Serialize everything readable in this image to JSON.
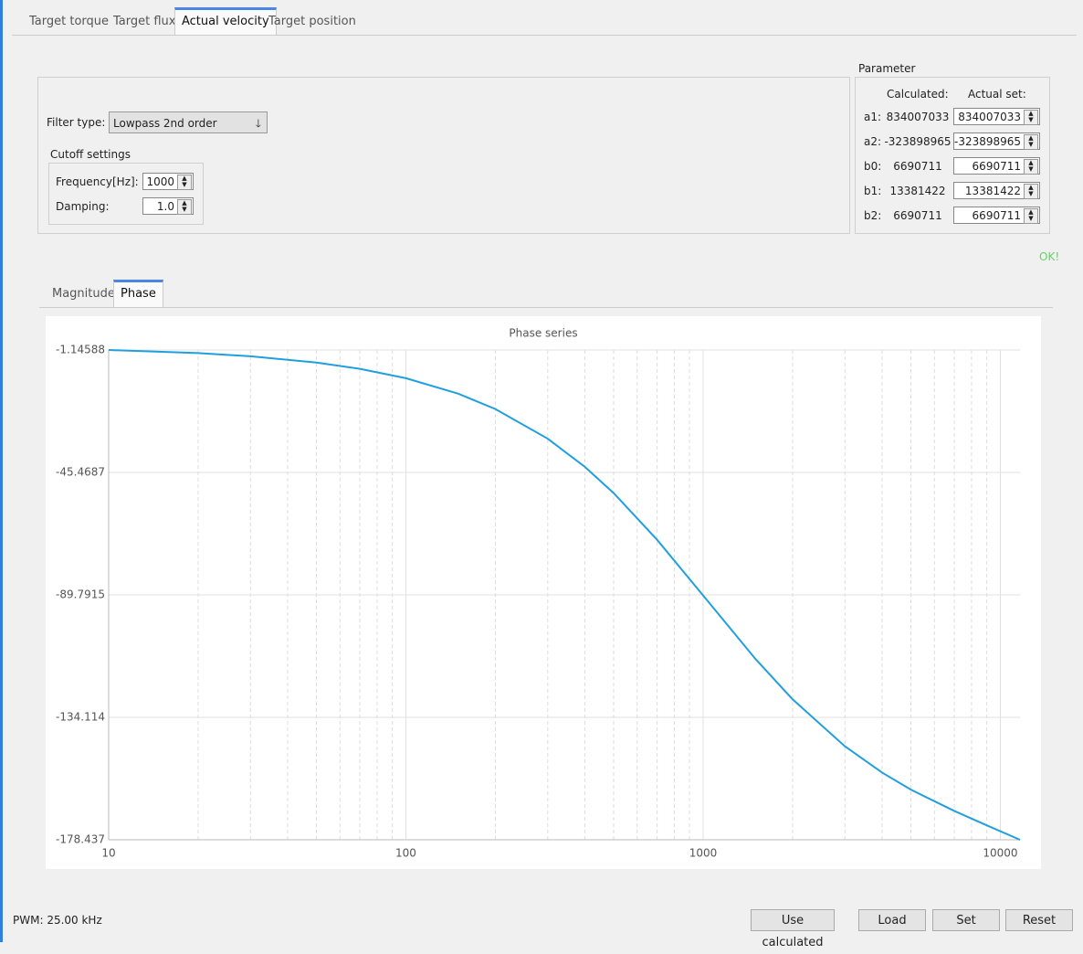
{
  "tabs": [
    "Target torque",
    "Target flux",
    "Actual velocity",
    "Target position"
  ],
  "active_tab": 2,
  "filter": {
    "label": "Filter type:",
    "value": "Lowpass 2nd order"
  },
  "cutoff": {
    "title": "Cutoff settings",
    "frequency_label": "Frequency[Hz]:",
    "frequency": "1000",
    "damping_label": "Damping:",
    "damping": "1.0"
  },
  "parameter": {
    "title": "Parameter",
    "calculated_header": "Calculated:",
    "actual_header": "Actual set:",
    "rows": [
      {
        "name": "a1:",
        "calculated": "834007033",
        "actual": "834007033"
      },
      {
        "name": "a2:",
        "calculated": "-323898965",
        "actual": "-323898965"
      },
      {
        "name": "b0:",
        "calculated": "6690711",
        "actual": "6690711"
      },
      {
        "name": "b1:",
        "calculated": "13381422",
        "actual": "13381422"
      },
      {
        "name": "b2:",
        "calculated": "6690711",
        "actual": "6690711"
      }
    ]
  },
  "status": "OK!",
  "plot_tabs": [
    "Magnitude",
    "Phase"
  ],
  "active_plot_tab": 1,
  "chart_data": {
    "type": "line",
    "title": "Phase series",
    "log_x": true,
    "grid": true,
    "x": [
      10,
      20,
      30,
      50,
      70,
      100,
      150,
      200,
      300,
      400,
      500,
      700,
      1000,
      1500,
      2000,
      3000,
      4000,
      5000,
      7000,
      9000,
      11644
    ],
    "series": [
      {
        "name": "Phase",
        "color": "#209fdf",
        "values": [
          -1.14588,
          -2.28,
          -3.42,
          -5.69,
          -7.97,
          -11.36,
          -16.97,
          -22.51,
          -33.25,
          -43.44,
          -52.94,
          -69.84,
          -90,
          -112.98,
          -127.6,
          -144.6,
          -154.1,
          -160.3,
          -168.0,
          -173.2,
          -178.437
        ]
      }
    ],
    "xlim": [
      10,
      11644
    ],
    "xticks": [
      10,
      100,
      1000,
      10000
    ],
    "x_minor_ticks": [
      20,
      30,
      40,
      50,
      60,
      70,
      80,
      90,
      200,
      300,
      400,
      500,
      600,
      700,
      800,
      900,
      2000,
      3000,
      4000,
      5000,
      6000,
      7000,
      8000,
      9000
    ],
    "ylim": [
      -178.437,
      -1.14588
    ],
    "yticks": [
      -1.14588,
      -45.4687,
      -89.7915,
      -134.114,
      -178.437
    ]
  },
  "footer": {
    "pwm": "PWM: 25.00 kHz",
    "buttons": [
      "Use calculated",
      "Load",
      "Set",
      "Reset"
    ]
  }
}
